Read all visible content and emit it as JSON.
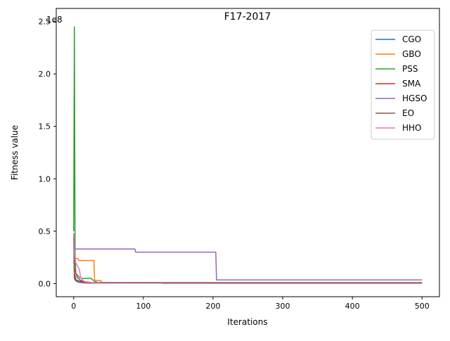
{
  "chart_data": {
    "type": "line",
    "title": "F17-2017",
    "xlabel": "Iterations",
    "ylabel": "Fitness value",
    "y_offset_text": "1e8",
    "xlim": [
      -25,
      525
    ],
    "ylim": [
      -0.125,
      2.625
    ],
    "y_unit_scale": 100000000,
    "x_ticks": [
      0,
      100,
      200,
      300,
      400,
      500
    ],
    "x_tick_labels": [
      "0",
      "100",
      "200",
      "300",
      "400",
      "500"
    ],
    "y_ticks": [
      0,
      0.5,
      1.0,
      1.5,
      2.0,
      2.5
    ],
    "y_tick_labels": [
      "0.0",
      "0.5",
      "1.0",
      "1.5",
      "2.0",
      "2.5"
    ],
    "grid": false,
    "legend_position": "top-right",
    "series": [
      {
        "name": "CGO",
        "color": "#1f77b4",
        "x": [
          0,
          1,
          3,
          8,
          20,
          500
        ],
        "y": [
          0.46,
          0.05,
          0.025,
          0.012,
          0.005,
          0.005
        ]
      },
      {
        "name": "GBO",
        "color": "#ff7f0e",
        "x": [
          0,
          1,
          2,
          6,
          7,
          29,
          30,
          31,
          39,
          40,
          60,
          500
        ],
        "y": [
          0.48,
          0.24,
          0.24,
          0.24,
          0.22,
          0.22,
          0.04,
          0.03,
          0.03,
          0.01,
          0.01,
          0.01
        ]
      },
      {
        "name": "PSS",
        "color": "#2ca02c",
        "x": [
          0,
          1,
          2,
          3,
          8,
          12,
          25,
          30,
          35,
          60,
          500
        ],
        "y": [
          0.5,
          2.45,
          0.3,
          0.1,
          0.06,
          0.05,
          0.05,
          0.02,
          0.01,
          0.01,
          0.01
        ]
      },
      {
        "name": "SMA",
        "color": "#d62728",
        "x": [
          0,
          1,
          3,
          5,
          10,
          15,
          20,
          500
        ],
        "y": [
          0.48,
          0.1,
          0.04,
          0.03,
          0.02,
          0.01,
          0.005,
          0.005
        ]
      },
      {
        "name": "HGSO",
        "color": "#9467bd",
        "x": [
          0,
          1,
          88,
          89,
          204,
          205,
          500
        ],
        "y": [
          0.48,
          0.33,
          0.33,
          0.3,
          0.3,
          0.035,
          0.035
        ]
      },
      {
        "name": "EO",
        "color": "#8c564b",
        "x": [
          0,
          1,
          5,
          10,
          15,
          25,
          127,
          128,
          500
        ],
        "y": [
          0.45,
          0.15,
          0.06,
          0.03,
          0.02,
          0.01,
          0.005,
          0.002,
          0.002
        ]
      },
      {
        "name": "HHO",
        "color": "#e377c2",
        "x": [
          0,
          1,
          3,
          6,
          8,
          10,
          12,
          15,
          20,
          40,
          500
        ],
        "y": [
          0.47,
          0.3,
          0.2,
          0.16,
          0.14,
          0.06,
          0.04,
          0.02,
          0.01,
          0.003,
          0.003
        ]
      }
    ]
  }
}
